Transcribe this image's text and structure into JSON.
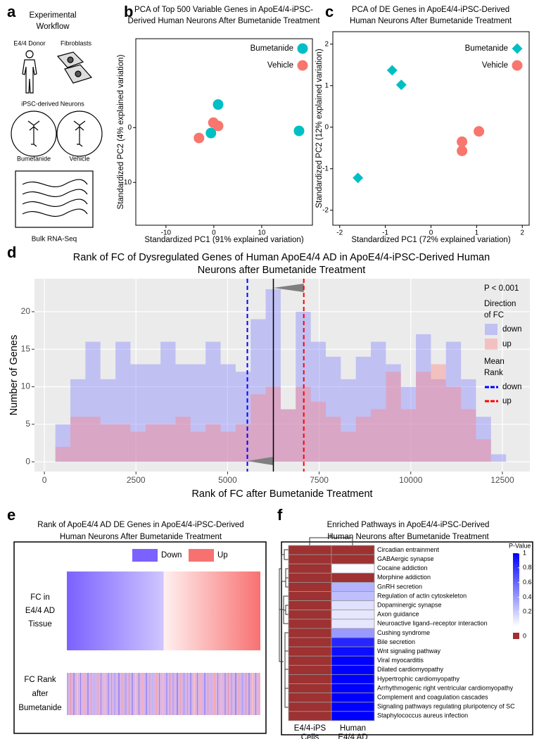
{
  "panel_labels": [
    "a",
    "b",
    "c",
    "d",
    "e",
    "f"
  ],
  "workflow": {
    "title": [
      "Experimental",
      "Workflow"
    ],
    "donor": "E4/4 Donor",
    "fibroblasts": "Fibroblasts",
    "neurons": "iPSC-derived Neurons",
    "treatment": "Bumetanide",
    "control": "Vehicle",
    "assay": "Bulk RNA-Seq"
  },
  "chart_data": [
    {
      "type": "scatter",
      "title": [
        "PCA of Top 500 Variable Genes in ApoE4/4-iPSC-",
        "Derived Human Neurons After Bumetanide Treatment"
      ],
      "x_label": "Standardized PC1 (91% explained variation)",
      "y_label": "Standardized PC2 (4% explained variation)",
      "xlim": [
        -16.3,
        20.6
      ],
      "ylim": [
        -17.8,
        16.2
      ],
      "xticks": [
        -10,
        0,
        10
      ],
      "yticks": [
        -10,
        0
      ],
      "series": [
        {
          "name": "Bumetanide",
          "color": "#00BFC4",
          "shape": "circle",
          "x": [
            0.9,
            -0.6,
            17.8
          ],
          "y": [
            4.2,
            -1.0,
            -0.6
          ]
        },
        {
          "name": "Vehicle",
          "color": "#F8766D",
          "shape": "circle",
          "x": [
            -0.1,
            0.9,
            -3.1
          ],
          "y": [
            0.9,
            0.3,
            -1.9
          ]
        }
      ]
    },
    {
      "type": "scatter",
      "title": [
        "PCA of DE Genes in ApoE4/4-iPSC-Derived",
        "Human Neurons After Bumetanide Treatment"
      ],
      "x_label": "Standardized PC1 (72% explained variation)",
      "y_label": "Standardized PC2 (12% explained variation)",
      "xlim": [
        -2.15,
        2.15
      ],
      "ylim": [
        -2.36,
        2.3
      ],
      "xticks": [
        -2,
        -1,
        0,
        1,
        2
      ],
      "yticks": [
        -2,
        -1,
        0,
        1,
        2
      ],
      "series": [
        {
          "name": "Bumetanide",
          "color": "#00BFC4",
          "shape": "diamond",
          "x": [
            -0.85,
            -0.65,
            -1.6
          ],
          "y": [
            1.37,
            1.02,
            -1.22
          ]
        },
        {
          "name": "Vehicle",
          "color": "#F8766D",
          "shape": "circle",
          "x": [
            1.05,
            0.68,
            0.68
          ],
          "y": [
            -0.1,
            -0.35,
            -0.57
          ]
        }
      ]
    },
    {
      "type": "histogram",
      "title": [
        "Rank of FC of Dysregulated Genes of Human ApoE4/4 AD in ApoE4/4-iPSC-Derived Human",
        "Neurons after Bumetanide Treatment"
      ],
      "x_label": "Rank of FC after Bumetanide Treatment",
      "y_label": "Number of Genes",
      "xlim": [
        -270,
        13250
      ],
      "ylim": [
        -1.3,
        24.4
      ],
      "xticks": [
        0,
        2500,
        5000,
        7500,
        10000,
        12500
      ],
      "yticks": [
        0,
        5,
        10,
        15,
        20
      ],
      "grid": true,
      "bins": [
        300,
        710,
        1120,
        1530,
        1940,
        2350,
        2760,
        3170,
        3580,
        3990,
        4400,
        4810,
        5220,
        5630,
        6040,
        6450,
        6860,
        7270,
        7680,
        8090,
        8500,
        8910,
        9320,
        9730,
        10140,
        10550,
        10960,
        11370,
        11780,
        12190,
        12600
      ],
      "legend_title": [
        "Direction",
        "of FC"
      ],
      "series": [
        {
          "name": "down",
          "color": "#7f7fff",
          "values": [
            5,
            11,
            16,
            11,
            16,
            13,
            13,
            16,
            13,
            13,
            16,
            13,
            12,
            19,
            23,
            7,
            20,
            16,
            14,
            11,
            14,
            16,
            13,
            10,
            17,
            11,
            16,
            11,
            6,
            1
          ]
        },
        {
          "name": "up",
          "color": "#ff7f7f",
          "values": [
            2,
            6,
            6,
            5,
            5,
            4,
            5,
            5,
            6,
            4,
            5,
            4,
            5,
            9,
            10,
            7,
            10,
            8,
            6,
            4,
            6,
            7,
            12,
            7,
            12,
            13,
            10,
            7,
            3,
            0
          ]
        }
      ],
      "mean_rank_title": [
        "Mean",
        "Rank"
      ],
      "mean_rank": [
        {
          "name": "down",
          "color": "#0000ff",
          "value": 5540
        },
        {
          "name": "up",
          "color": "#ff0000",
          "value": 7080
        }
      ],
      "center_rank": 6250,
      "annotation": "P < 0.001"
    },
    {
      "type": "heatmap",
      "title": [
        "Rank of ApoE4/4 AD DE Genes in ApoE4/4-iPSC-Derived",
        "Human Neurons After Bumetanide Treatment"
      ],
      "legend": [
        {
          "name": "Down",
          "color": "#7b61ff"
        },
        {
          "name": "Up",
          "color": "#f87171"
        }
      ],
      "rows": [
        [
          "FC in",
          "E4/4 AD",
          "Tissue"
        ],
        [
          "FC Rank",
          "after",
          "Bumetanide"
        ]
      ]
    },
    {
      "type": "heatmap",
      "title": [
        "Enriched Pathways in ApoE4/4-iPSC-Derived",
        "Human Neurons after Bumetanide Treatment"
      ],
      "columns": [
        [
          "E4/4-iPS",
          "Cells"
        ],
        [
          "Human",
          "E4/4 AD"
        ]
      ],
      "colorbar_title": "P-Value",
      "clim": [
        0,
        1
      ],
      "colorbar_ticks": [
        0.2,
        0.4,
        0.6,
        0.8,
        1
      ],
      "zero_label": 0,
      "low_color": "#ffffff",
      "high_color": "#0000ff",
      "zero_color": "#9e3131",
      "rows": [
        {
          "name": "Circadian entrainment",
          "label_color": "#e3262b",
          "values": [
            0,
            0
          ]
        },
        {
          "name": "GABAergic synapse",
          "label_color": "#e3262b",
          "values": [
            0,
            0
          ]
        },
        {
          "name": "Cocaine addiction",
          "label_color": "#000000",
          "values": [
            0,
            0.02
          ]
        },
        {
          "name": "Morphine addiction",
          "label_color": "#e3262b",
          "values": [
            0,
            0
          ]
        },
        {
          "name": "GnRH secretion",
          "label_color": "#000000",
          "values": [
            0,
            0.3
          ]
        },
        {
          "name": "Regulation of actin cytoskeleton",
          "label_color": "#000000",
          "values": [
            0,
            0.25
          ]
        },
        {
          "name": "Dopaminergic synapse",
          "label_color": "#000000",
          "values": [
            0,
            0.12
          ]
        },
        {
          "name": "Axon guidance",
          "label_color": "#000000",
          "values": [
            0,
            0.1
          ]
        },
        {
          "name": "Neuroactive ligand–receptor interaction",
          "label_color": "#000000",
          "values": [
            0,
            0.1
          ]
        },
        {
          "name": "Cushing syndrome",
          "label_color": "#000000",
          "values": [
            0,
            0.4
          ]
        },
        {
          "name": "Bile secretion",
          "label_color": "#000000",
          "values": [
            0,
            0.85
          ]
        },
        {
          "name": "Wnt signaling pathway",
          "label_color": "#000000",
          "values": [
            0,
            0.95
          ]
        },
        {
          "name": "Viral myocarditis",
          "label_color": "#000000",
          "values": [
            0,
            1
          ]
        },
        {
          "name": "Dilated cardiomyopathy",
          "label_color": "#000000",
          "values": [
            0,
            1
          ]
        },
        {
          "name": "Hypertrophic cardiomyopathy",
          "label_color": "#000000",
          "values": [
            0,
            1
          ]
        },
        {
          "name": "Arrhythmogenic right ventricular cardiomyopathy",
          "label_color": "#000000",
          "values": [
            0,
            1
          ]
        },
        {
          "name": "Complement and coagulation cascades",
          "label_color": "#000000",
          "values": [
            0,
            1
          ]
        },
        {
          "name": "Signaling pathways regulating pluripotency of SC",
          "label_color": "#000000",
          "values": [
            0,
            1
          ]
        },
        {
          "name": "Staphylococcus aureus infection",
          "label_color": "#000000",
          "values": [
            0,
            1
          ]
        }
      ]
    }
  ]
}
